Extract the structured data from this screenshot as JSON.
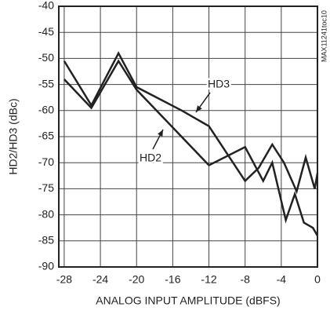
{
  "chart_data": {
    "type": "line",
    "x_label": "ANALOG INPUT AMPLITUDE (dBFS)",
    "y_label": "HD2/HD3 (dBc)",
    "figure_id": "MAX11241toc10",
    "xlim": [
      -28.6,
      0
    ],
    "xticks": [
      -28,
      -24,
      -20,
      -16,
      -12,
      -8,
      -4,
      0
    ],
    "ylim": [
      -90,
      -40
    ],
    "yticks": [
      -90,
      -85,
      -80,
      -75,
      -70,
      -65,
      -60,
      -55,
      -50,
      -45,
      -40
    ],
    "grid": true,
    "series": [
      {
        "name": "HD2",
        "color": "#222222",
        "x": [
          -28,
          -25,
          -22,
          -20,
          -12,
          -8,
          -6,
          -5,
          -3.5,
          -2.5,
          -1.5,
          -0.5,
          0
        ],
        "values": [
          -54,
          -59.5,
          -50.5,
          -56,
          -70.5,
          -67,
          -73.5,
          -70,
          -81,
          -76,
          -81.5,
          -82.5,
          -84
        ]
      },
      {
        "name": "HD3",
        "color": "#222222",
        "x": [
          -28,
          -25,
          -22,
          -20,
          -15,
          -12,
          -8,
          -6.5,
          -5,
          -3.7,
          -2.3,
          -1.3,
          -0.3,
          0
        ],
        "values": [
          -50.5,
          -59,
          -49,
          -55.5,
          -60,
          -63,
          -73.5,
          -71,
          -66.5,
          -70,
          -75.5,
          -69,
          -75,
          -72
        ]
      }
    ]
  }
}
